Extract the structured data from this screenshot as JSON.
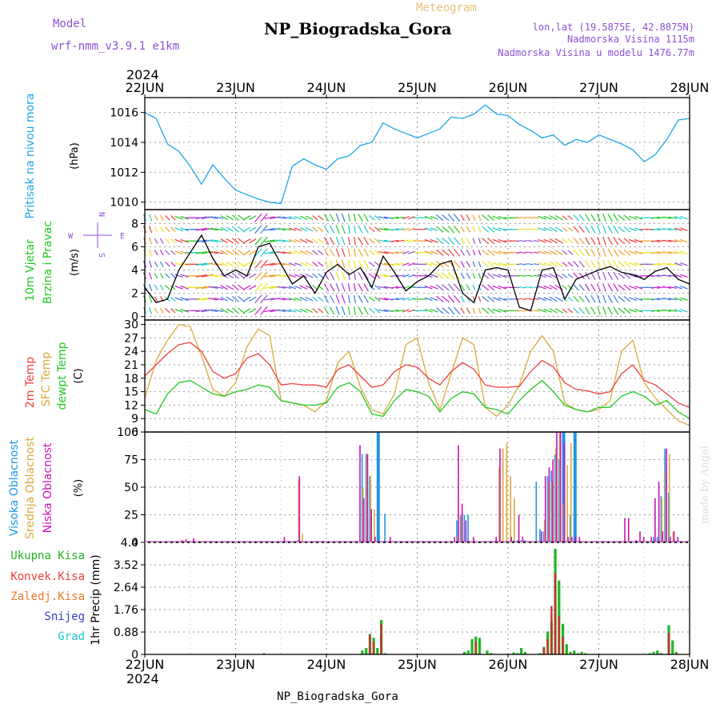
{
  "header": {
    "model_label": "Model",
    "model_name": "wrf-nmm_v3.9.1  e1km",
    "meteogram_label": "Meteogram",
    "station_title": "NP_Biogradska_Gora",
    "lonlat": "lon,lat (19.5875E, 42.8875N)",
    "elevation": "Nadmorska Visina 1115m",
    "model_elevation": "Nadmorska Visina u modelu 1476.77m",
    "year_top": "2024",
    "year_bottom": "2024",
    "footer_station": "NP_Biogradska_Gora",
    "watermark": "made by Angel"
  },
  "colors": {
    "pressure": "#1ea5e6",
    "temp2m": "#f04040",
    "sfc": "#dcaa3c",
    "dewpt": "#22c822",
    "high_cloud": "#1e96e6",
    "mid_cloud": "#dcaa3c",
    "low_cloud": "#c814b4",
    "total_precip": "#22b422",
    "conv_precip": "#c83232",
    "frozen": "#f07828",
    "snow": "#3c3cc8",
    "hail": "#1ec8c8",
    "wind_label": "#8c50d2"
  },
  "chart_data": [
    {
      "type": "line",
      "panel": "pressure",
      "ylabel_main": "Pritisak na nivou mora",
      "ylabel_unit": "(hPa)",
      "ylim": [
        1009.5,
        1017.0
      ],
      "yticks": [
        "1010",
        "1012",
        "1014",
        "1016"
      ],
      "xlim": [
        0,
        144
      ],
      "xticks": [
        "22JUN",
        "23JUN",
        "24JUN",
        "25JUN",
        "26JUN",
        "27JUN",
        "28JUN"
      ],
      "series": [
        {
          "x": [
            0,
            3,
            6,
            9,
            12,
            15,
            18,
            21,
            24,
            27,
            30,
            33,
            36,
            39,
            42,
            45,
            48,
            51,
            54,
            57,
            60,
            63,
            66,
            69,
            72,
            75,
            78,
            81,
            84,
            87,
            90,
            93,
            96,
            99,
            102,
            105,
            108,
            111,
            114,
            117,
            120,
            123,
            126,
            129,
            132,
            135,
            138,
            141,
            144
          ],
          "values": [
            1016.0,
            1015.6,
            1013.9,
            1013.4,
            1012.4,
            1011.2,
            1012.5,
            1011.6,
            1010.8,
            1010.5,
            1010.2,
            1010.0,
            1009.9,
            1012.4,
            1012.9,
            1012.5,
            1012.2,
            1012.9,
            1013.1,
            1013.8,
            1014.0,
            1015.3,
            1014.9,
            1014.6,
            1014.3,
            1014.6,
            1014.9,
            1015.7,
            1015.6,
            1015.9,
            1016.5,
            1015.9,
            1015.8,
            1015.2,
            1014.8,
            1014.3,
            1014.5,
            1013.8,
            1014.2,
            1014.0,
            1014.5,
            1014.2,
            1013.9,
            1013.5,
            1012.7,
            1013.2,
            1014.2,
            1015.5,
            1015.6
          ]
        }
      ]
    },
    {
      "type": "line",
      "panel": "wind",
      "ylabel_main": "10m Vjetar",
      "ylabel_sub": "Brzina i Pravac",
      "ylabel_unit": "(m/s)",
      "compass": {
        "n": "N",
        "s": "S",
        "e": "E",
        "w": "W"
      },
      "ylim": [
        -0.3,
        9.2
      ],
      "yticks": [
        "0",
        "2",
        "4",
        "6",
        "8"
      ],
      "series": [
        {
          "name": "speed",
          "x": [
            0,
            3,
            6,
            9,
            12,
            15,
            18,
            21,
            24,
            27,
            30,
            33,
            36,
            39,
            42,
            45,
            48,
            51,
            54,
            57,
            60,
            63,
            66,
            69,
            72,
            75,
            78,
            81,
            84,
            87,
            90,
            93,
            96,
            99,
            102,
            105,
            108,
            111,
            114,
            117,
            120,
            123,
            126,
            129,
            132,
            135,
            138,
            141,
            144
          ],
          "values": [
            2.5,
            1.2,
            1.5,
            4.0,
            5.5,
            7.0,
            5.0,
            3.5,
            4.0,
            3.5,
            6.0,
            6.3,
            4.5,
            2.8,
            3.5,
            2.0,
            3.8,
            4.5,
            3.6,
            4.2,
            2.5,
            5.2,
            3.8,
            2.2,
            3.0,
            3.5,
            4.5,
            4.8,
            2.0,
            1.2,
            4.0,
            4.2,
            4.0,
            0.8,
            0.5,
            4.0,
            4.2,
            1.5,
            3.2,
            3.6,
            4.0,
            4.3,
            3.8,
            3.6,
            3.2,
            3.9,
            4.2,
            3.2,
            2.8
          ]
        }
      ]
    },
    {
      "type": "line",
      "panel": "temperature",
      "ylabel_t2m": "2m Temp",
      "ylabel_sfc": "SFC Temp",
      "ylabel_dew": "dewpt Temp",
      "ylabel_unit": "(C)",
      "ylim": [
        6,
        31
      ],
      "yticks": [
        "6",
        "9",
        "12",
        "15",
        "18",
        "21",
        "24",
        "27",
        "30"
      ],
      "series": [
        {
          "name": "2m Temp",
          "x": [
            0,
            3,
            6,
            9,
            12,
            15,
            18,
            21,
            24,
            27,
            30,
            33,
            36,
            39,
            42,
            45,
            48,
            51,
            54,
            57,
            60,
            63,
            66,
            69,
            72,
            75,
            78,
            81,
            84,
            87,
            90,
            93,
            96,
            99,
            102,
            105,
            108,
            111,
            114,
            117,
            120,
            123,
            126,
            129,
            132,
            135,
            138,
            141,
            144
          ],
          "values": [
            18.5,
            21.0,
            23.5,
            25.5,
            26.0,
            24.0,
            19.5,
            18.0,
            19.0,
            22.5,
            23.5,
            21.0,
            16.5,
            16.8,
            16.5,
            16.5,
            16.0,
            20.0,
            21.0,
            18.5,
            16.0,
            16.5,
            19.5,
            21.0,
            20.5,
            18.0,
            16.5,
            19.5,
            21.5,
            20.0,
            16.5,
            16.0,
            16.0,
            16.2,
            19.5,
            22.0,
            20.5,
            17.0,
            15.5,
            15.2,
            14.5,
            15.0,
            19.0,
            21.0,
            17.5,
            16.5,
            14.5,
            12.5,
            11.5
          ]
        },
        {
          "name": "SFC Temp",
          "x": [
            0,
            3,
            6,
            9,
            12,
            15,
            18,
            21,
            24,
            27,
            30,
            33,
            36,
            39,
            42,
            45,
            48,
            51,
            54,
            57,
            60,
            63,
            66,
            69,
            72,
            75,
            78,
            81,
            84,
            87,
            90,
            93,
            96,
            99,
            102,
            105,
            108,
            111,
            114,
            117,
            120,
            123,
            126,
            129,
            132,
            135,
            138,
            141,
            144
          ],
          "values": [
            13.5,
            22.0,
            26.5,
            30.0,
            29.5,
            23.0,
            15.5,
            14.0,
            17.0,
            25.0,
            29.0,
            27.5,
            13.0,
            12.5,
            12.0,
            10.5,
            13.0,
            21.5,
            24.0,
            16.0,
            11.0,
            10.0,
            14.5,
            25.5,
            27.0,
            17.0,
            11.0,
            19.0,
            27.0,
            25.5,
            11.5,
            9.5,
            12.0,
            16.5,
            24.0,
            27.5,
            24.0,
            12.5,
            11.0,
            10.5,
            11.0,
            13.0,
            24.0,
            26.5,
            17.0,
            13.5,
            11.0,
            8.5,
            7.5
          ]
        },
        {
          "name": "dewpt Temp",
          "x": [
            0,
            3,
            6,
            9,
            12,
            15,
            18,
            21,
            24,
            27,
            30,
            33,
            36,
            39,
            42,
            45,
            48,
            51,
            54,
            57,
            60,
            63,
            66,
            69,
            72,
            75,
            78,
            81,
            84,
            87,
            90,
            93,
            96,
            99,
            102,
            105,
            108,
            111,
            114,
            117,
            120,
            123,
            126,
            129,
            132,
            135,
            138,
            141,
            144
          ],
          "values": [
            11.0,
            10.0,
            14.5,
            17.0,
            17.5,
            16.0,
            14.5,
            14.0,
            15.0,
            15.5,
            16.5,
            16.0,
            13.0,
            12.5,
            12.0,
            12.0,
            12.5,
            16.0,
            17.0,
            15.0,
            10.0,
            9.5,
            13.0,
            15.5,
            15.0,
            14.0,
            10.5,
            13.5,
            15.0,
            14.5,
            11.5,
            11.0,
            10.0,
            13.0,
            15.5,
            17.5,
            15.0,
            12.0,
            11.0,
            10.5,
            11.5,
            11.5,
            14.0,
            15.0,
            14.0,
            12.0,
            13.0,
            10.5,
            9.0
          ]
        }
      ]
    },
    {
      "type": "bar",
      "panel": "cloud",
      "ylabel_high": "Visoka Oblacnost",
      "ylabel_mid": "Srednja Oblacnost",
      "ylabel_low": "Niska Oblacnost",
      "ylabel_unit": "(%)",
      "ylim": [
        0,
        100
      ],
      "yticks": [
        "0",
        "25",
        "50",
        "75",
        "100"
      ],
      "series": [
        {
          "name": "Visoka Oblacnost",
          "x": [
            40.5,
            57.5,
            58.5,
            59.5,
            61.5,
            63.5,
            82.5,
            83.5,
            84.5,
            85.5,
            97.5,
            98.5,
            99.5,
            100.5,
            103.5,
            104.5,
            105.5,
            106.5,
            107.5,
            108.5,
            109.5,
            110.5,
            112.5,
            113.5,
            134.5,
            135.5,
            136.5,
            137.5,
            138.5
          ],
          "values": [
            2,
            80,
            80,
            60,
            100,
            26,
            20,
            25,
            25,
            25,
            2,
            2,
            2,
            2,
            55,
            12,
            10,
            60,
            65,
            80,
            75,
            100,
            25,
            100,
            5,
            5,
            42,
            85,
            45
          ]
        },
        {
          "name": "Srednja Oblacnost",
          "x": [
            40.5,
            41.5,
            57.5,
            58.5,
            59.5,
            60.5,
            82.5,
            83.5,
            93.5,
            94.5,
            95.5,
            96.5,
            97.5,
            105.5,
            106.5,
            107.5,
            108.5,
            109.5,
            110.5,
            111.5,
            112.5,
            136.5,
            137.5,
            138.5,
            139.5
          ],
          "values": [
            57,
            8,
            50,
            80,
            60,
            30,
            5,
            25,
            68,
            85,
            90,
            60,
            40,
            20,
            55,
            55,
            85,
            100,
            35,
            70,
            90,
            40,
            65,
            80,
            10
          ]
        },
        {
          "name": "Niska Oblacnost",
          "x": [
            9.5,
            10.5,
            12.5,
            36.5,
            40.5,
            56.5,
            57.5,
            58.5,
            59.5,
            60.5,
            64.5,
            81.5,
            82.5,
            83.5,
            84.5,
            86.5,
            92.5,
            93.5,
            96.5,
            98.5,
            99.5,
            104.5,
            105.5,
            106.5,
            107.5,
            108.5,
            109.5,
            110.5,
            111.5,
            112.5,
            113.5,
            114.5,
            126.5,
            127.5,
            129.5,
            130.5,
            131.5,
            133.5,
            134.5,
            135.5,
            136.5,
            137.5,
            138.5,
            139.5,
            140.5
          ],
          "values": [
            2,
            3,
            4,
            5,
            60,
            88,
            40,
            80,
            30,
            5,
            5,
            5,
            88,
            35,
            20,
            5,
            5,
            85,
            5,
            25,
            5,
            10,
            60,
            68,
            75,
            100,
            100,
            90,
            5,
            5,
            5,
            5,
            22,
            22,
            2,
            10,
            5,
            5,
            40,
            55,
            10,
            85,
            5,
            10,
            5
          ]
        }
      ]
    },
    {
      "type": "bar",
      "panel": "precip",
      "ylabel": "1hr Precip (mm)",
      "legend": [
        "Ukupna Kisa",
        "Konvek.Kisa",
        "Zaledj.Kisa",
        "Snijeg",
        "Grad"
      ],
      "ylim": [
        0,
        4.4
      ],
      "yticks": [
        "0",
        "0.88",
        "1.76",
        "2.64",
        "3.52",
        "4.4"
      ],
      "series": [
        {
          "name": "Ukupna Kisa",
          "x": [
            31.5,
            57.5,
            58.5,
            59.5,
            60.5,
            61.5,
            62.5,
            63.5,
            84.5,
            85.5,
            86.5,
            87.5,
            88.5,
            90.5,
            91.5,
            97.5,
            98.5,
            99.5,
            100.5,
            104.5,
            105.5,
            106.5,
            107.5,
            108.5,
            109.5,
            110.5,
            111.5,
            112.5,
            113.5,
            114.5,
            115.5,
            116.5,
            133.5,
            134.5,
            135.5,
            136.5,
            138.5,
            139.5,
            140.5
          ],
          "values": [
            0.05,
            0.15,
            0.25,
            0.8,
            0.65,
            0.25,
            1.35,
            0.05,
            0.1,
            0.15,
            0.6,
            0.7,
            0.65,
            0.15,
            0.05,
            0.08,
            0.05,
            0.25,
            0.1,
            0.05,
            0.3,
            0.9,
            1.3,
            4.15,
            2.9,
            1.2,
            0.4,
            0.1,
            0.15,
            0.05,
            0.1,
            0.05,
            0.05,
            0.1,
            0.15,
            0.05,
            1.15,
            0.55,
            0.1
          ]
        },
        {
          "name": "Konvek.Kisa",
          "x": [
            59.5,
            60.5,
            62.5,
            87.5,
            105.5,
            106.5,
            107.5,
            108.5,
            109.5,
            110.5,
            138.5
          ],
          "values": [
            0.75,
            0.5,
            1.2,
            0.5,
            0.25,
            0.6,
            1.9,
            3.2,
            1.5,
            0.7,
            0.85
          ]
        }
      ]
    }
  ]
}
